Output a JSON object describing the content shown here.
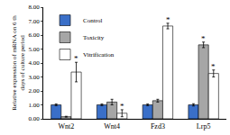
{
  "chart_data": {
    "type": "bar",
    "y_label": "Relative expression of mRNA on 6 th days of culture period",
    "categories": [
      "Wnt2",
      "Wnt4",
      "Fzd3",
      "Lrp5"
    ],
    "series": [
      {
        "name": "Control",
        "color": "#3a6fc8",
        "values": [
          1.0,
          1.0,
          1.0,
          1.0
        ],
        "errors": [
          0.06,
          0.06,
          0.06,
          0.08
        ],
        "marks": [
          null,
          null,
          null,
          null
        ]
      },
      {
        "name": "Toxicity",
        "color": "#a6a6a6",
        "values": [
          0.15,
          1.2,
          1.3,
          5.3
        ],
        "errors": [
          0.03,
          0.2,
          0.1,
          0.2
        ],
        "marks": [
          null,
          null,
          null,
          "*"
        ]
      },
      {
        "name": "Vitrification",
        "color": "#ffffff",
        "values": [
          3.35,
          0.4,
          6.65,
          3.25
        ],
        "errors": [
          0.7,
          0.25,
          0.2,
          0.25
        ],
        "marks": [
          "*",
          "*",
          "*",
          "*"
        ]
      }
    ],
    "ylim": [
      0,
      8
    ],
    "yticks": [
      {
        "value": 0,
        "label": "0.00"
      },
      {
        "value": 1,
        "label": "1.00"
      },
      {
        "value": 2,
        "label": "2.00"
      },
      {
        "value": 3,
        "label": "3.00"
      },
      {
        "value": 4,
        "label": "4.00"
      },
      {
        "value": 5,
        "label": "5.00"
      },
      {
        "value": 6,
        "label": "6.00"
      },
      {
        "value": 7,
        "label": "7.00"
      },
      {
        "value": 8,
        "label": "8.00"
      }
    ],
    "legend": "top-left",
    "grid": false
  }
}
